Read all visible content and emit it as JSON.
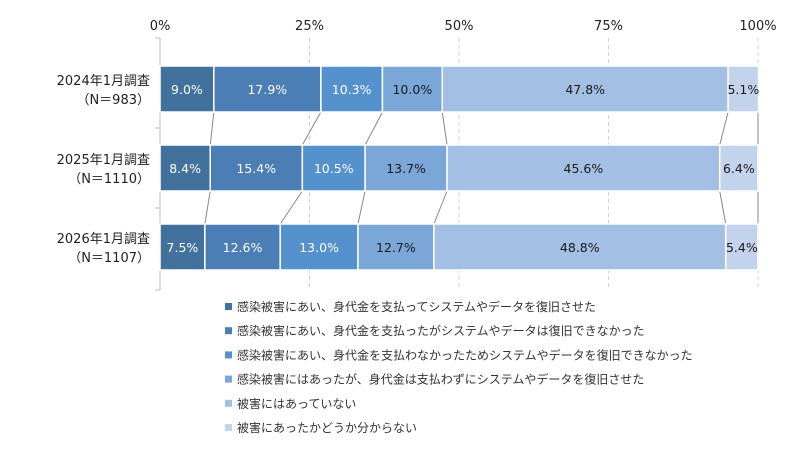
{
  "chart_data": {
    "type": "bar",
    "orientation": "horizontal",
    "stacked": "percent",
    "title": "",
    "xlabel": "",
    "ylabel": "",
    "xlim": [
      0,
      100
    ],
    "x_ticks": [
      "0%",
      "25%",
      "50%",
      "75%",
      "100%"
    ],
    "grid": "vertical dashed",
    "legend_position": "bottom",
    "categories": [
      {
        "line1": "2024年1月調査",
        "line2": "（N＝983）"
      },
      {
        "line1": "2025年1月調査",
        "line2": "（N＝1110）"
      },
      {
        "line1": "2026年1月調査",
        "line2": "（N＝1107）"
      }
    ],
    "series": [
      {
        "name": "感染被害にあい、身代金を支払ってシステムやデータを復旧させた",
        "color": "#41719c",
        "label_color": "#ffffff",
        "values": [
          9.0,
          8.4,
          7.5
        ]
      },
      {
        "name": "感染被害にあい、身代金を支払ったがシステムやデータは復旧できなかった",
        "color": "#4a7eb4",
        "label_color": "#ffffff",
        "values": [
          17.9,
          15.4,
          12.6
        ]
      },
      {
        "name": "感染被害にあい、身代金を支払わなかったためシステムやデータを復旧できなかった",
        "color": "#5592cd",
        "label_color": "#ffffff",
        "values": [
          10.3,
          10.5,
          13.0
        ]
      },
      {
        "name": "感染被害にはあったが、身代金は支払わずにシステムやデータを復旧させた",
        "color": "#7ba7d8",
        "label_color": "#1a1a1a",
        "values": [
          10.0,
          13.7,
          12.7
        ]
      },
      {
        "name": "被害にはあっていない",
        "color": "#a3bfe3",
        "label_color": "#1a1a1a",
        "values": [
          47.8,
          45.6,
          48.8
        ]
      },
      {
        "name": "被害にあったかどうか分からない",
        "color": "#c3d3eb",
        "label_color": "#1a1a1a",
        "values": [
          5.1,
          6.4,
          5.4
        ]
      }
    ]
  }
}
